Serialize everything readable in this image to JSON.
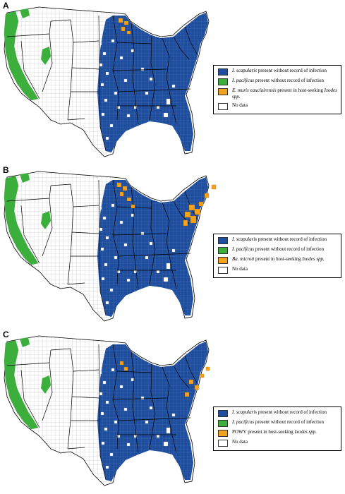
{
  "colors": {
    "scapularis": "#1f4e9e",
    "pacificus": "#3cae3c",
    "pathogen": "#f4a21c",
    "nodata": "#ffffff",
    "county_line": "#9a9a9a",
    "state_line": "#000000"
  },
  "panels": [
    {
      "label": "A",
      "legend": [
        {
          "color_key": "scapularis",
          "species": "I. scapularis",
          "text": " present without record of infection",
          "suffix": ""
        },
        {
          "color_key": "pacificus",
          "species": "I. pacificus",
          "text": " present without record of infection",
          "suffix": ""
        },
        {
          "color_key": "pathogen",
          "species": "E. muris eauclairensis",
          "text": "  present in host-seeking ",
          "suffix": "Ixodes spp."
        },
        {
          "color_key": "nodata",
          "species": "",
          "text": "No data",
          "suffix": ""
        }
      ]
    },
    {
      "label": "B",
      "legend": [
        {
          "color_key": "scapularis",
          "species": "I. scapularis",
          "text": " present without record of infection",
          "suffix": ""
        },
        {
          "color_key": "pacificus",
          "species": "I. pacificus",
          "text": " present without record of infection",
          "suffix": ""
        },
        {
          "color_key": "pathogen",
          "species": "Ba. microti",
          "text": " present in host-seeking ",
          "suffix": "Ixodes spp."
        },
        {
          "color_key": "nodata",
          "species": "",
          "text": "No data",
          "suffix": ""
        }
      ]
    },
    {
      "label": "C",
      "legend": [
        {
          "color_key": "scapularis",
          "species": "I. scapularis",
          "text": " present without record of infection",
          "suffix": ""
        },
        {
          "color_key": "pacificus",
          "species": "I. pacificus",
          "text": " present without record of infection",
          "suffix": ""
        },
        {
          "color_key": "pathogen",
          "species": "",
          "text": "POWV present in host-seeking ",
          "suffix": "Ixodes spp."
        },
        {
          "color_key": "nodata",
          "species": "",
          "text": "No data",
          "suffix": ""
        }
      ]
    }
  ]
}
